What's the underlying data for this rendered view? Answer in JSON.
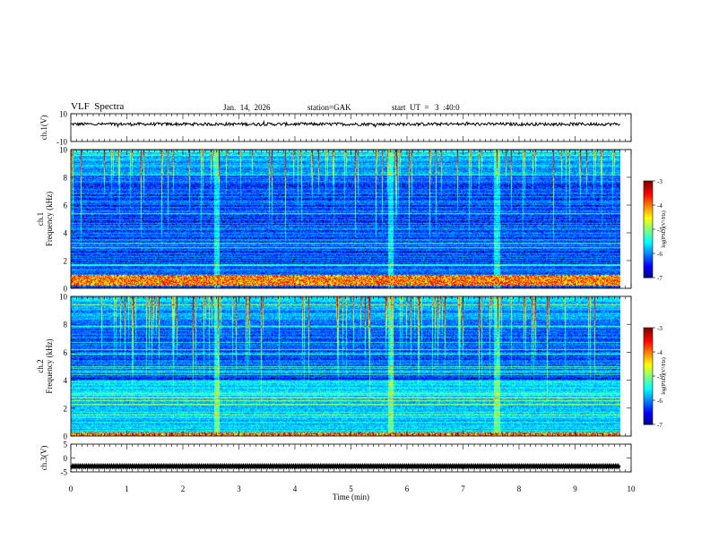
{
  "header": {
    "title": "VLF  Spectra",
    "date": "Jan.  14,  2026",
    "station": "station=GAK",
    "start": "start  UT  =   3  :40:0"
  },
  "chart_data": [
    {
      "type": "line",
      "panel": "waveform",
      "ylabel": "ch.1(V)",
      "ylim": [
        -10,
        10
      ],
      "y_ticks": [
        "10",
        "-10"
      ],
      "xlim": [
        0,
        10
      ],
      "series": [
        {
          "values_description": "noise waveform around +2.5 V, amplitude about ±1 V, x from 0 to 9.8 min",
          "mean": 2.5,
          "x_end": 9.8
        }
      ]
    },
    {
      "type": "heatmap",
      "panel": "spectrogram",
      "ylabel": "ch.1\nFrequency  (kHz)",
      "ylim": [
        0,
        10
      ],
      "y_ticks": [
        "0",
        "2",
        "4",
        "6",
        "8",
        "10"
      ],
      "xlim": [
        0,
        10
      ],
      "x_end": 9.8,
      "colorbar": {
        "label": "log(PSD)(V²/Hz)",
        "range": [
          -7,
          -3
        ],
        "ticks": [
          "-3",
          "-4",
          "-5",
          "-6",
          "-7"
        ]
      },
      "features": {
        "strong_band_khz": [
          0.2,
          1.0
        ],
        "bright_hf_above_khz": 7.5,
        "burst_times_min": [
          2.6,
          5.7,
          7.6
        ]
      }
    },
    {
      "type": "heatmap",
      "panel": "spectrogram",
      "ylabel": "ch.2\nFrequency  (kHz)",
      "ylim": [
        0,
        10
      ],
      "y_ticks": [
        "0",
        "2",
        "4",
        "6",
        "8",
        "10"
      ],
      "xlim": [
        0,
        10
      ],
      "x_end": 9.8,
      "colorbar": {
        "label": "log(PSD)(V²/Hz)",
        "range": [
          -7,
          -3
        ],
        "ticks": [
          "-3",
          "-4",
          "-5",
          "-6",
          "-7"
        ]
      },
      "features": {
        "strong_band_khz": [
          0.0,
          0.3
        ],
        "bright_hf_above_khz": 7.5,
        "burst_times_min": [
          2.6,
          5.7,
          7.6
        ]
      }
    },
    {
      "type": "line",
      "panel": "waveform",
      "ylabel": "ch.3(V)",
      "ylim": [
        -5,
        5
      ],
      "y_ticks": [
        "5",
        "0",
        "-5"
      ],
      "xlim": [
        0,
        10
      ],
      "xlabel": "Time  (min)",
      "x_ticks": [
        "0",
        "1",
        "2",
        "3",
        "4",
        "5",
        "6",
        "7",
        "8",
        "9",
        "10"
      ],
      "series": [
        {
          "values_description": "dense square-like signal around -3 V, x from 0 to 9.8 min",
          "mean": -3,
          "x_end": 9.8
        }
      ]
    }
  ]
}
